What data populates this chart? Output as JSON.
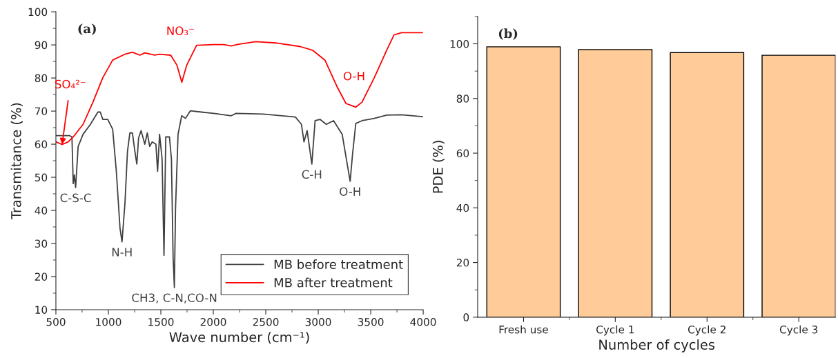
{
  "chart_data": [
    {
      "type": "line",
      "xlabel": "Wave number (cm⁻¹)",
      "ylabel": "Transmitance (%)",
      "xlim": [
        500,
        4000
      ],
      "xticks": [
        500,
        1000,
        1500,
        2000,
        2500,
        3000,
        3500,
        4000
      ],
      "ylim": [
        10,
        100
      ],
      "yticks": [
        10,
        20,
        30,
        40,
        50,
        60,
        70,
        80,
        90,
        100
      ],
      "legend": "bottom right",
      "series": [
        {
          "name": "MB before treatment",
          "color": "#404040",
          "x": [
            500,
            629,
            653,
            665,
            676,
            688,
            712,
            759,
            829,
            900,
            923,
            947,
            994,
            1041,
            1076,
            1111,
            1130,
            1158,
            1182,
            1205,
            1229,
            1253,
            1271,
            1288,
            1312,
            1347,
            1371,
            1394,
            1418,
            1453,
            1469,
            1488,
            1512,
            1530,
            1547,
            1582,
            1601,
            1617,
            1629,
            1640,
            1664,
            1699,
            1735,
            1782,
            1888,
            2005,
            2170,
            2217,
            2476,
            2782,
            2840,
            2864,
            2894,
            2922,
            2939,
            2970,
            3017,
            3076,
            3146,
            3228,
            3276,
            3304,
            3327,
            3358,
            3417,
            3534,
            3652,
            3793,
            3993
          ],
          "values": [
            62.6,
            62.6,
            62.2,
            48.1,
            50.7,
            46.9,
            59.3,
            63,
            66,
            69.7,
            69.7,
            67.5,
            67.5,
            64.5,
            51.8,
            34.6,
            30.5,
            42.1,
            57.8,
            63.4,
            63.4,
            57.8,
            54,
            61.9,
            64.1,
            60,
            63.4,
            59.3,
            60.7,
            60,
            51.8,
            63,
            55.5,
            26.4,
            62.2,
            62.2,
            55.5,
            25.7,
            16.7,
            40.6,
            63,
            68.6,
            67.8,
            70.1,
            69.7,
            69.3,
            68.6,
            69.3,
            69.1,
            68.2,
            66,
            60.7,
            64.1,
            57.8,
            54,
            67.1,
            67.5,
            66,
            67.1,
            63,
            54,
            48.8,
            57,
            66.3,
            67.1,
            67.8,
            68.8,
            68.9,
            68.3
          ]
        },
        {
          "name": "MB after treatment",
          "color": "#ff0000",
          "x": [
            500,
            559,
            618,
            665,
            759,
            853,
            947,
            1041,
            1159,
            1229,
            1300,
            1347,
            1441,
            1488,
            1594,
            1653,
            1700,
            1747,
            1841,
            2005,
            2100,
            2170,
            2241,
            2405,
            2593,
            2829,
            2946,
            3064,
            3182,
            3264,
            3358,
            3417,
            3534,
            3652,
            3722,
            3793,
            3993
          ],
          "values": [
            60.7,
            59.9,
            60.7,
            62.2,
            66,
            72.7,
            80.1,
            85.4,
            87.2,
            87.8,
            86.9,
            87.6,
            86.9,
            87.2,
            86.9,
            83.9,
            78.7,
            83.9,
            89.9,
            90.1,
            90.1,
            89.7,
            90.2,
            91,
            90.6,
            89.5,
            88.4,
            85.4,
            77.2,
            72.3,
            71.2,
            72.7,
            80.1,
            88.4,
            93,
            93.7,
            93.7
          ]
        }
      ],
      "annotations": [
        "(a)",
        "NO₃⁻",
        "O-H",
        {
          "text": "SO₄²⁻",
          "x": 559,
          "y": 59.9
        },
        {
          "text": "C-S-C",
          "x": 688,
          "y": 46.9
        },
        {
          "text": "N-H",
          "x": 1130,
          "y": 30.5
        },
        {
          "text": "CH3, C-N,CO-N",
          "x": 1629,
          "y": 16.7
        },
        {
          "text": "C-H",
          "x": 2939,
          "y": 54
        },
        {
          "text": "O-H",
          "x": 3304,
          "y": 48.8
        }
      ]
    },
    {
      "type": "bar",
      "xlabel": "Number of cycles",
      "ylabel": "PDE (%)",
      "categories": [
        "Fresh use",
        "Cycle 1",
        "Cycle 2",
        "Cycle 3"
      ],
      "values": [
        98.9,
        97.9,
        96.8,
        95.8
      ],
      "color": "#ffcc99",
      "ylim": [
        0,
        110
      ],
      "yticks": [
        0,
        20,
        40,
        60,
        80,
        100
      ],
      "annotations": [
        "(b)"
      ]
    }
  ]
}
